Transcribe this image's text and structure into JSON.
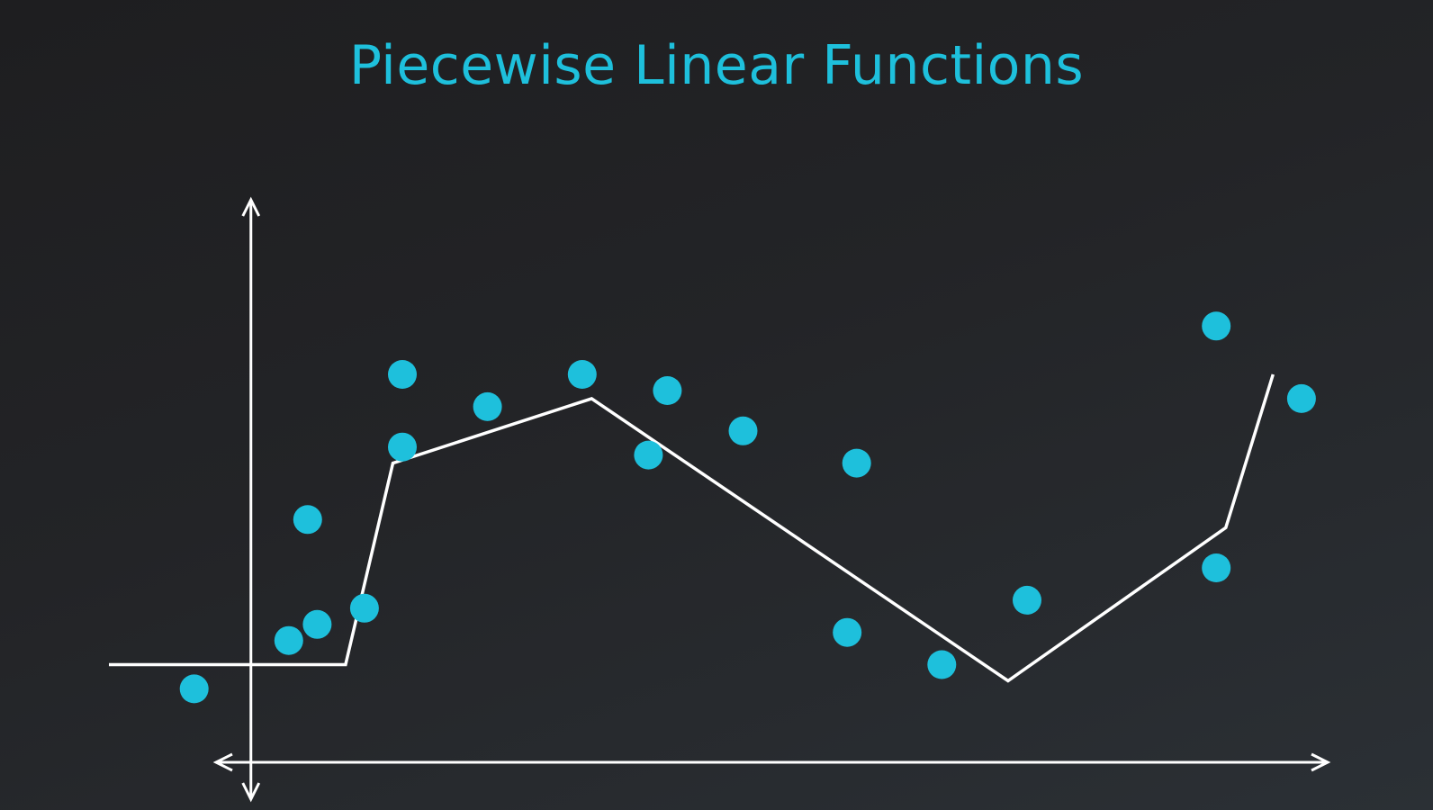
{
  "slide": {
    "title": "Piecewise Linear Functions"
  },
  "colors": {
    "accent": "#1ec0dc",
    "line": "#ffffff",
    "background": "#232427"
  },
  "chart_data": {
    "type": "scatter",
    "title": "Piecewise Linear Functions",
    "xlabel": "",
    "ylabel": "",
    "xlim": [
      -1.7,
      11.9
    ],
    "ylim": [
      -1.3,
      5.9
    ],
    "axes": {
      "x_arrows": "both",
      "y_arrows": "both",
      "tick_labels": false,
      "grid": false
    },
    "series": [
      {
        "type": "scatter",
        "points": [
          [
            -0.6,
            -0.3
          ],
          [
            0.4,
            0.3
          ],
          [
            0.6,
            1.8
          ],
          [
            0.7,
            0.5
          ],
          [
            1.2,
            0.7
          ],
          [
            1.6,
            2.7
          ],
          [
            1.6,
            3.6
          ],
          [
            2.5,
            3.2
          ],
          [
            3.5,
            3.6
          ],
          [
            4.2,
            2.6
          ],
          [
            4.4,
            3.4
          ],
          [
            5.2,
            2.9
          ],
          [
            6.4,
            2.5
          ],
          [
            6.3,
            0.4
          ],
          [
            7.3,
            0.0
          ],
          [
            8.2,
            0.8
          ],
          [
            10.2,
            1.2
          ],
          [
            10.2,
            4.2
          ],
          [
            11.1,
            3.3
          ]
        ]
      },
      {
        "type": "line",
        "points": [
          [
            -1.5,
            0.0
          ],
          [
            1.0,
            0.0
          ],
          [
            1.5,
            2.5
          ],
          [
            3.6,
            3.3
          ],
          [
            8.0,
            -0.2
          ],
          [
            10.3,
            1.7
          ],
          [
            10.8,
            3.6
          ]
        ]
      }
    ]
  }
}
